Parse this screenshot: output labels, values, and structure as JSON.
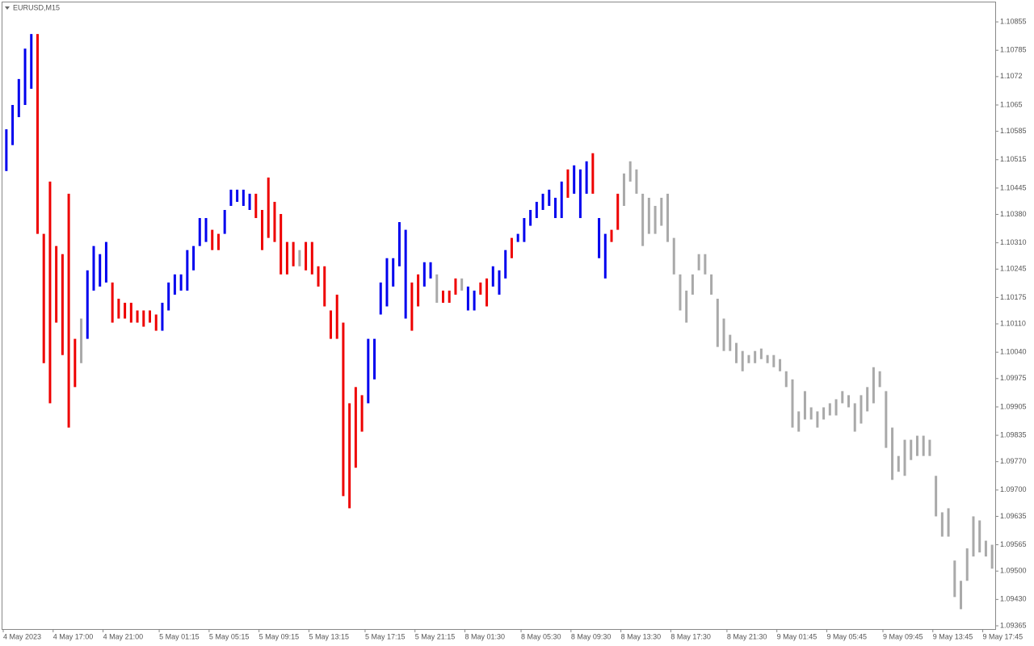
{
  "chart_data": {
    "type": "hilo",
    "title": "EURUSD,M15",
    "ylim": [
      1.09357,
      1.10903
    ],
    "yticks": [
      1.10855,
      1.10785,
      1.1072,
      1.1065,
      1.10585,
      1.10515,
      1.10445,
      {
        "value": 1.1038,
        "label": "1.10380"
      },
      {
        "value": 1.1031,
        "label": "1.10310"
      },
      1.10245,
      1.10175,
      {
        "value": 1.1011,
        "label": "1.10110"
      },
      {
        "value": 1.1004,
        "label": "1.10040"
      },
      1.09975,
      1.09905,
      1.09835,
      {
        "value": 1.0977,
        "label": "1.09770"
      },
      {
        "value": 1.097,
        "label": "1.09700"
      },
      1.09635,
      1.09565,
      {
        "value": 1.095,
        "label": "1.09500"
      },
      {
        "value": 1.0943,
        "label": "1.09430"
      },
      1.09365
    ],
    "xticks": [
      {
        "value": 0,
        "label": "4 May 2023"
      },
      {
        "value": 8,
        "label": "4 May 17:00"
      },
      {
        "value": 16,
        "label": "4 May 21:00"
      },
      {
        "value": 25,
        "label": "5 May 01:15"
      },
      {
        "value": 33,
        "label": "5 May 05:15"
      },
      {
        "value": 41,
        "label": "5 May 09:15"
      },
      {
        "value": 49,
        "label": "5 May 13:15"
      },
      {
        "value": 58,
        "label": "5 May 17:15"
      },
      {
        "value": 66,
        "label": "5 May 21:15"
      },
      {
        "value": 74,
        "label": "8 May 01:30"
      },
      {
        "value": 83,
        "label": "8 May 05:30"
      },
      {
        "value": 91,
        "label": "8 May 09:30"
      },
      {
        "value": 99,
        "label": "8 May 13:30"
      },
      {
        "value": 107,
        "label": "8 May 17:30"
      },
      {
        "value": 116,
        "label": "8 May 21:30"
      },
      {
        "value": 124,
        "label": "9 May 01:45"
      },
      {
        "value": 132,
        "label": "9 May 05:45"
      },
      {
        "value": 141,
        "label": "9 May 09:45"
      },
      {
        "value": 149,
        "label": "9 May 13:45"
      },
      {
        "value": 157,
        "label": "9 May 17:45"
      }
    ],
    "colors": {
      "u": "#0000ee",
      "d": "#ee0000",
      "n": "#a9a9a9"
    },
    "trend": "uuuuudddddddnuuuudddddddduuuuuuuudduuuuudddddddndddddddddduuuuuuudduundddfuudduuuduuuuuuuuduuuduudd",
    "high": [
      1.1059,
      1.1065,
      1.10714,
      1.10789,
      1.10825,
      1.10825,
      1.10332,
      1.10461,
      1.10302,
      1.10282,
      1.10431,
      1.10073,
      1.10123,
      1.10242,
      1.10302,
      1.10282,
      1.10312,
      1.10212,
      1.10172,
      1.10162,
      1.10162,
      1.10143,
      1.10143,
      1.10143,
      1.10133,
      1.10162,
      1.10212,
      1.10232,
      1.10232,
      1.10292,
      1.10302,
      1.10371,
      1.10371,
      1.10342,
      1.10332,
      1.10391,
      1.10441,
      1.10441,
      1.10441,
      1.10431,
      1.10431,
      1.10391,
      1.10471,
      1.10411,
      1.10381,
      1.10312,
      1.10312,
      1.10292,
      1.10312,
      1.10312,
      1.10252,
      1.10252,
      1.10143,
      1.10182,
      1.10113,
      1.09914,
      1.09954,
      1.09934,
      1.10073,
      1.10073,
      1.10212,
      1.10272,
      1.10272,
      1.10361,
      1.10342,
      1.10212,
      1.10232,
      1.10262,
      1.10262,
      1.10232,
      1.10192,
      1.10192,
      1.10222,
      1.10222,
      1.10202,
      1.10192,
      1.10212,
      1.10222,
      1.10252,
      1.10242,
      1.10292,
      1.10322,
      1.10332,
      1.10371,
      1.10391,
      1.10411,
      1.10431,
      1.10441,
      1.10421,
      1.10461,
      1.10491,
      1.10501,
      1.10491,
      1.10511,
      1.10531,
      1.10371,
      1.10332,
      1.10342,
      1.10431,
      1.10481,
      1.10511,
      1.10491,
      1.10431,
      1.10421,
      1.10401,
      1.10421,
      1.10431,
      1.10322,
      1.10232,
      1.10192,
      1.10232,
      1.10282,
      1.10282,
      1.10232,
      1.10172,
      1.10123,
      1.10083,
      1.10063,
      1.10043,
      1.10033,
      1.10043,
      1.10049,
      1.10033,
      1.10033,
      1.10023,
      1.09993,
      1.09973,
      1.09894,
      1.09944,
      1.09904,
      1.09894,
      1.09904,
      1.09914,
      1.09924,
      1.09944,
      1.09934,
      1.09914,
      1.09934,
      1.09954,
      1.10003,
      1.09993,
      1.09944,
      1.09854,
      1.09784,
      1.09824,
      1.09824,
      1.09834,
      1.09834,
      1.09824,
      1.09735,
      1.09645,
      1.09655,
      1.09526,
      1.09476,
      1.09556,
      1.09635,
      1.09625,
      1.09575,
      1.09565
    ],
    "low": [
      1.10487,
      1.10551,
      1.1062,
      1.1065,
      1.1069,
      1.10332,
      1.10013,
      1.09914,
      1.10113,
      1.10033,
      1.09854,
      1.09954,
      1.10013,
      1.10073,
      1.10192,
      1.10202,
      1.10212,
      1.10113,
      1.10123,
      1.10123,
      1.10113,
      1.10113,
      1.10103,
      1.10113,
      1.10093,
      1.10093,
      1.10143,
      1.10182,
      1.10192,
      1.10192,
      1.10242,
      1.10302,
      1.10312,
      1.10292,
      1.10292,
      1.10332,
      1.10401,
      1.10411,
      1.10401,
      1.10391,
      1.10371,
      1.10292,
      1.10322,
      1.10312,
      1.10232,
      1.10232,
      1.10252,
      1.10252,
      1.10242,
      1.10232,
      1.10202,
      1.10153,
      1.10073,
      1.10073,
      1.09685,
      1.09655,
      1.09755,
      1.09844,
      1.09914,
      1.09973,
      1.10133,
      1.10153,
      1.10202,
      1.10252,
      1.10123,
      1.10093,
      1.10153,
      1.10202,
      1.10222,
      1.10162,
      1.10162,
      1.10162,
      1.10182,
      1.10192,
      1.10143,
      1.10143,
      1.10182,
      1.10153,
      1.10202,
      1.10182,
      1.10222,
      1.10272,
      1.10312,
      1.10312,
      1.10352,
      1.10371,
      1.10391,
      1.10401,
      1.10371,
      1.10371,
      1.10421,
      1.10431,
      1.10371,
      1.10431,
      1.10431,
      1.10272,
      1.10222,
      1.10312,
      1.10342,
      1.10401,
      1.10461,
      1.10431,
      1.10302,
      1.10332,
      1.10332,
      1.10352,
      1.10312,
      1.10232,
      1.10143,
      1.10113,
      1.10182,
      1.10242,
      1.10232,
      1.10182,
      1.10053,
      1.10043,
      1.10043,
      1.10013,
      1.09993,
      1.10013,
      1.10013,
      1.10023,
      1.10013,
      1.10003,
      1.09993,
      1.09954,
      1.09854,
      1.09844,
      1.09874,
      1.09874,
      1.09854,
      1.09874,
      1.09884,
      1.09884,
      1.09914,
      1.09904,
      1.09844,
      1.09864,
      1.09894,
      1.09914,
      1.09954,
      1.09804,
      1.09725,
      1.09745,
      1.09735,
      1.09774,
      1.09784,
      1.09784,
      1.09784,
      1.09635,
      1.09585,
      1.09585,
      1.09436,
      1.09406,
      1.09476,
      1.09536,
      1.09546,
      1.09536,
      1.09506
    ]
  }
}
